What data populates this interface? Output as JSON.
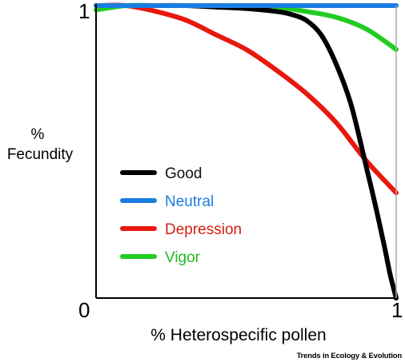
{
  "chart_data": {
    "type": "line",
    "ylabel": "% Fecundity",
    "ylabel_lines": [
      "%",
      "Fecundity"
    ],
    "xlabel": "% Heterospecific pollen",
    "xlim": [
      0,
      1
    ],
    "ylim": [
      0,
      1
    ],
    "xticks": [
      "0",
      "1"
    ],
    "yticks": [
      "1"
    ],
    "legend_position": "lower-left",
    "series": [
      {
        "name": "Good",
        "color": "#000000",
        "label_color": "#111111",
        "x": [
          0,
          0.1,
          0.2,
          0.3,
          0.4,
          0.5,
          0.6,
          0.65,
          0.7,
          0.75,
          0.8,
          0.85,
          0.9,
          0.93,
          0.96,
          0.98,
          1.0
        ],
        "y": [
          1.0,
          1.0,
          1.0,
          1.0,
          0.995,
          0.99,
          0.98,
          0.97,
          0.95,
          0.9,
          0.8,
          0.66,
          0.45,
          0.32,
          0.18,
          0.08,
          0.0
        ]
      },
      {
        "name": "Neutral",
        "color": "#1a7ee0",
        "label_color": "#1a7ee0",
        "x": [
          0,
          1.0
        ],
        "y": [
          1.0,
          1.0
        ]
      },
      {
        "name": "Depression",
        "color": "#e8180c",
        "label_color": "#d42010",
        "x": [
          0,
          0.1,
          0.2,
          0.3,
          0.4,
          0.5,
          0.6,
          0.7,
          0.8,
          0.9,
          1.0
        ],
        "y": [
          1.0,
          1.0,
          0.98,
          0.95,
          0.9,
          0.85,
          0.78,
          0.7,
          0.6,
          0.47,
          0.36
        ]
      },
      {
        "name": "Vigor",
        "color": "#22cc22",
        "label_color": "#22bb22",
        "x": [
          0,
          0.1,
          0.2,
          0.3,
          0.4,
          0.5,
          0.6,
          0.7,
          0.8,
          0.9,
          1.0
        ],
        "y": [
          0.985,
          1.0,
          1.0,
          1.0,
          1.0,
          1.0,
          0.995,
          0.98,
          0.96,
          0.92,
          0.85
        ]
      }
    ]
  },
  "credit": "Trends in Ecology & Evolution"
}
